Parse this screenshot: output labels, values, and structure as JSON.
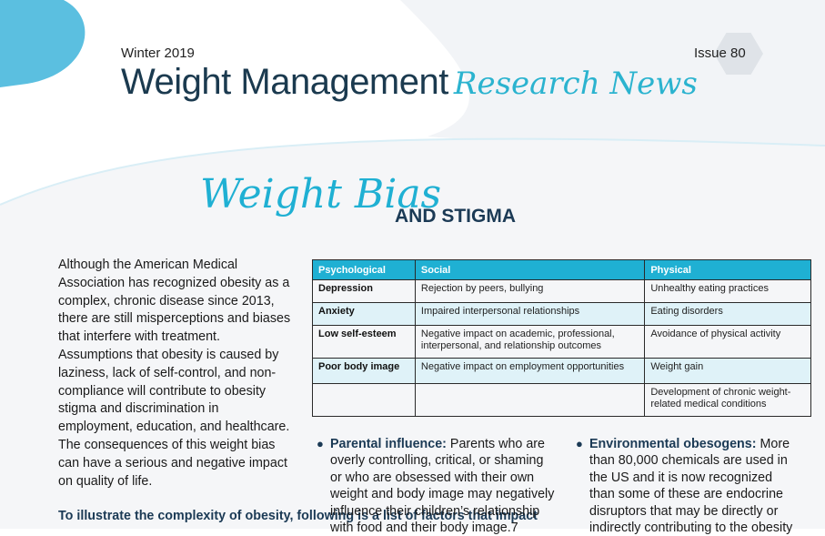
{
  "header": {
    "season": "Winter 2019",
    "issue": "Issue 80",
    "title_main": "Weight Management",
    "title_script": "Research News"
  },
  "article": {
    "title_script": "Weight Bias",
    "title_caps": "AND STIGMA",
    "body": "Although the American Medical Association has recognized obesity as a complex, chronic disease since 2013, there are still misperceptions and biases that interfere with treatment. Assumptions that obesity is caused by laziness, lack of self-control, and non-compliance will contribute to obesity stigma and discrimination in employment, education, and healthcare. The consequences of this weight bias can have a serious and negative impact on quality of life.",
    "body_bold": "To illustrate the complexity of obesity, following is a list of factors that impact"
  },
  "table": {
    "headers": [
      "Psychological",
      "Social",
      "Physical"
    ],
    "rows": [
      [
        "Depression",
        "Rejection by peers, bullying",
        "Unhealthy eating practices"
      ],
      [
        "Anxiety",
        "Impaired interpersonal relationships",
        "Eating disorders"
      ],
      [
        "Low self-esteem",
        "Negative impact on academic, professional, interpersonal, and relationship outcomes",
        "Avoidance of physical activity"
      ],
      [
        "Poor body image",
        "Negative impact on employment opportunities",
        "Weight gain"
      ],
      [
        "",
        "",
        "Development of chronic weight-related medical conditions"
      ]
    ]
  },
  "bullets": [
    {
      "heading": "Parental influence:",
      "text": "Parents who are overly controlling, critical, or shaming or who are obsessed with their own weight and body image may negatively influence their children’s relationship with food and their body image.7"
    },
    {
      "heading": "Environmental obesogens:",
      "text": "More than 80,000 chemicals are used in the US and it is now recognized than some of these are endocrine disruptors that may be directly or indirectly contributing to the obesity"
    }
  ],
  "colors": {
    "accent": "#1fb0d3",
    "navy": "#1b3a55",
    "table_alt": "#dff2f8",
    "decor": "#5bbfe0"
  }
}
